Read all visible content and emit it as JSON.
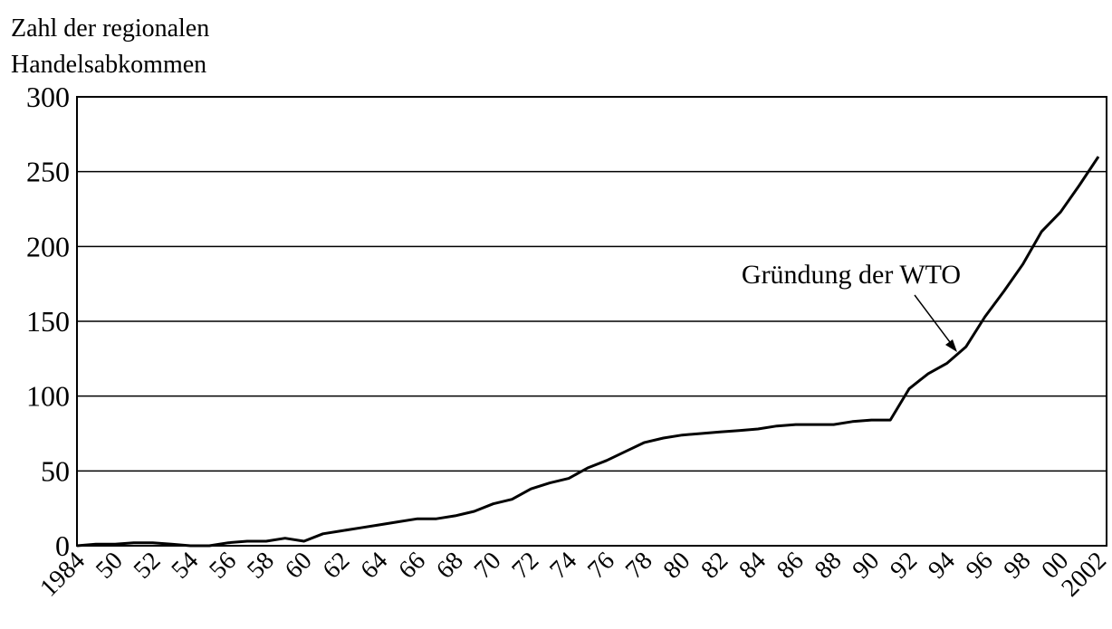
{
  "chart_data": {
    "type": "line",
    "y_label": [
      "Zahl der regionalen",
      "Handelsabkommen"
    ],
    "annotation": "Gründung der WTO",
    "categories": [
      "1984",
      null,
      "50",
      null,
      "52",
      null,
      "54",
      null,
      "56",
      null,
      "58",
      null,
      "60",
      null,
      "62",
      null,
      "64",
      null,
      "66",
      null,
      "68",
      null,
      "70",
      null,
      "72",
      null,
      "74",
      null,
      "76",
      null,
      "78",
      null,
      "80",
      null,
      "82",
      null,
      "84",
      null,
      "86",
      null,
      "88",
      null,
      "90",
      null,
      "92",
      null,
      "94",
      null,
      "96",
      null,
      "98",
      null,
      "00",
      null,
      "2002"
    ],
    "values": [
      0,
      1,
      1,
      2,
      2,
      1,
      0,
      0,
      2,
      3,
      3,
      5,
      3,
      8,
      10,
      12,
      14,
      16,
      18,
      18,
      20,
      23,
      28,
      31,
      38,
      42,
      45,
      52,
      57,
      63,
      69,
      72,
      74,
      75,
      76,
      77,
      78,
      80,
      81,
      81,
      81,
      83,
      84,
      84,
      105,
      115,
      122,
      133,
      153,
      170,
      188,
      210,
      223,
      241,
      260
    ],
    "color": "#000000",
    "ylim": [
      0,
      300
    ],
    "yticks": [
      0,
      50,
      100,
      150,
      200,
      250,
      300
    ],
    "grid": true
  }
}
